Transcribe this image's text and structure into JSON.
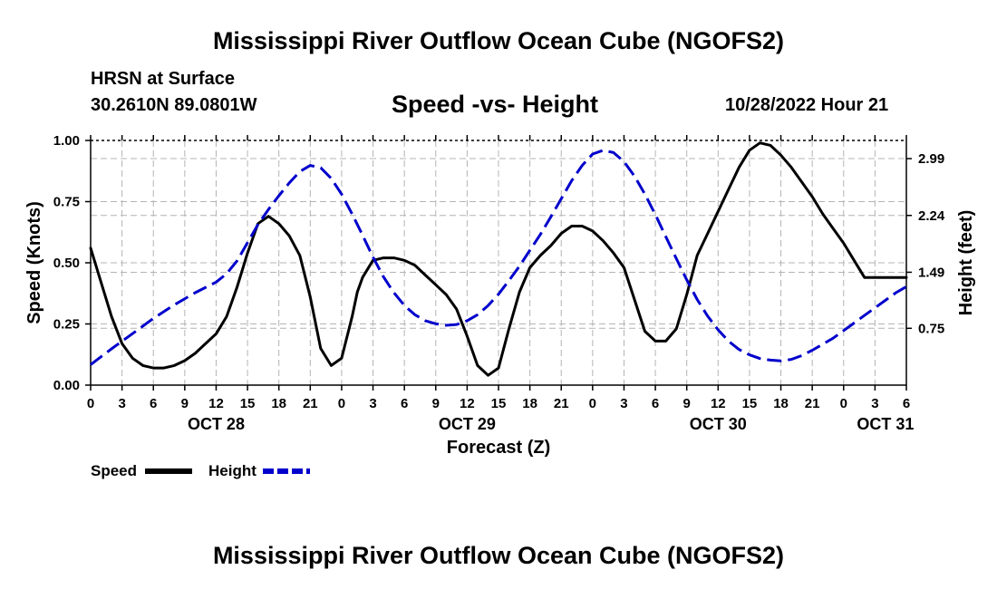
{
  "header": {
    "title": "Mississippi River Outflow Ocean Cube (NGOFS2)",
    "station": "HRSN at Surface",
    "coords": "30.2610N  89.0801W",
    "subtitle": "Speed -vs- Height",
    "datetime": "10/28/2022 Hour 21"
  },
  "footer": {
    "title": "Mississippi River Outflow Ocean Cube (NGOFS2)"
  },
  "legend": {
    "speed_label": "Speed",
    "height_label": "Height",
    "speed_color": "#000000",
    "height_color": "#0000cc"
  },
  "chart_data": {
    "type": "line",
    "title": "Speed -vs- Height",
    "xlabel": "Forecast (Z)",
    "ylabel": "Speed (Knots)",
    "y2label": "Height (feet)",
    "xlim": [
      0,
      78
    ],
    "ylim": [
      0,
      1
    ],
    "y2lim": [
      0,
      3.23
    ],
    "grid": true,
    "x_ticks": [
      0,
      3,
      6,
      9,
      12,
      15,
      18,
      21,
      24,
      27,
      30,
      33,
      36,
      39,
      42,
      45,
      48,
      51,
      54,
      57,
      60,
      63,
      66,
      69,
      72,
      75,
      78
    ],
    "x_tick_labels": [
      "0",
      "3",
      "6",
      "9",
      "12",
      "15",
      "18",
      "21",
      "0",
      "3",
      "6",
      "9",
      "12",
      "15",
      "18",
      "21",
      "0",
      "3",
      "6",
      "9",
      "12",
      "15",
      "18",
      "21",
      "0",
      "3",
      "6"
    ],
    "day_labels": [
      {
        "x": 12,
        "label": "OCT 28"
      },
      {
        "x": 36,
        "label": "OCT 29"
      },
      {
        "x": 60,
        "label": "OCT 30"
      },
      {
        "x": 76,
        "label": "OCT 31"
      }
    ],
    "y_ticks": [
      0,
      0.25,
      0.5,
      0.75,
      1.0
    ],
    "y_tick_labels": [
      "0.00",
      "0.25",
      "0.50",
      "0.75",
      "1.00"
    ],
    "y2_ticks": [
      0.75,
      1.49,
      2.24,
      2.99
    ],
    "y2_tick_labels": [
      "0.75",
      "1.49",
      "2.24",
      "2.99"
    ],
    "series": [
      {
        "name": "Speed",
        "axis": "left",
        "x": [
          0,
          1,
          2,
          3,
          4,
          5,
          6,
          7,
          8,
          9,
          10,
          11,
          12,
          13,
          14,
          15,
          16,
          17,
          18,
          19,
          20,
          21,
          22,
          23,
          24,
          25,
          25.5,
          26,
          27,
          28,
          29,
          30,
          31,
          32,
          33,
          34,
          35,
          36,
          37,
          38,
          39,
          40,
          41,
          42,
          43,
          43.5,
          44,
          45,
          46,
          47,
          48,
          49,
          50,
          51,
          52,
          53,
          54,
          55,
          56,
          57,
          57.5,
          58,
          59,
          60,
          61,
          62,
          63,
          64,
          65,
          66,
          67,
          68,
          69,
          70,
          71,
          72,
          73,
          74,
          75,
          76,
          77,
          78
        ],
        "values": [
          0.56,
          0.42,
          0.28,
          0.17,
          0.11,
          0.08,
          0.07,
          0.07,
          0.08,
          0.1,
          0.13,
          0.17,
          0.21,
          0.28,
          0.4,
          0.54,
          0.66,
          0.69,
          0.66,
          0.61,
          0.53,
          0.36,
          0.15,
          0.08,
          0.11,
          0.28,
          0.38,
          0.44,
          0.51,
          0.52,
          0.52,
          0.51,
          0.49,
          0.45,
          0.41,
          0.37,
          0.31,
          0.2,
          0.08,
          0.04,
          0.07,
          0.23,
          0.38,
          0.48,
          0.53,
          0.55,
          0.57,
          0.62,
          0.65,
          0.65,
          0.63,
          0.59,
          0.54,
          0.48,
          0.35,
          0.22,
          0.18,
          0.18,
          0.23,
          0.37,
          0.45,
          0.53,
          0.62,
          0.71,
          0.8,
          0.89,
          0.96,
          0.99,
          0.98,
          0.94,
          0.89,
          0.83,
          0.77,
          0.7,
          0.64,
          0.58,
          0.51,
          0.44,
          0.44,
          0.44,
          0.44,
          0.44
        ]
      },
      {
        "name": "Height",
        "axis": "right",
        "dashed": true,
        "x": [
          0,
          2,
          4,
          6,
          8,
          10,
          12,
          13,
          14,
          15,
          16,
          17,
          18,
          19,
          20,
          21,
          22,
          23,
          24,
          25,
          26,
          27,
          28,
          29,
          30,
          31,
          32,
          33,
          34,
          35,
          36,
          37,
          38,
          39,
          40,
          41,
          42,
          43,
          44,
          45,
          46,
          47,
          48,
          49,
          50,
          51,
          52,
          53,
          54,
          55,
          56,
          57,
          58,
          59,
          60,
          61,
          62,
          63,
          64,
          65,
          66,
          67,
          68,
          69,
          70,
          71,
          72,
          73,
          74,
          75,
          76,
          77,
          78
        ],
        "values": [
          0.27,
          0.48,
          0.68,
          0.88,
          1.06,
          1.22,
          1.36,
          1.47,
          1.64,
          1.88,
          2.12,
          2.32,
          2.5,
          2.67,
          2.82,
          2.9,
          2.87,
          2.73,
          2.52,
          2.26,
          1.98,
          1.69,
          1.43,
          1.22,
          1.05,
          0.93,
          0.85,
          0.81,
          0.79,
          0.8,
          0.85,
          0.93,
          1.05,
          1.2,
          1.38,
          1.57,
          1.78,
          1.99,
          2.22,
          2.46,
          2.7,
          2.9,
          3.05,
          3.1,
          3.07,
          2.95,
          2.76,
          2.52,
          2.25,
          1.96,
          1.67,
          1.39,
          1.13,
          0.91,
          0.73,
          0.58,
          0.47,
          0.4,
          0.35,
          0.33,
          0.32,
          0.34,
          0.39,
          0.46,
          0.54,
          0.62,
          0.72,
          0.82,
          0.92,
          1.02,
          1.12,
          1.22,
          1.3
        ]
      }
    ]
  }
}
